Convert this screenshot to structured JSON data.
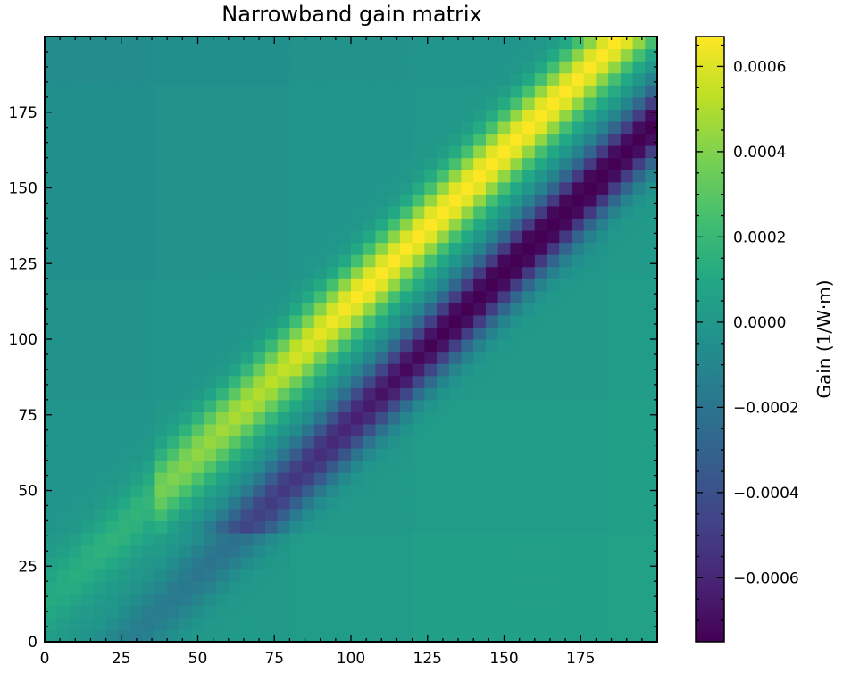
{
  "chart_data": {
    "type": "heatmap",
    "title": "Narrowband gain matrix",
    "xlabel": "",
    "ylabel": "",
    "xlim": [
      0,
      200
    ],
    "ylim": [
      0,
      200
    ],
    "x_ticks": [
      0,
      25,
      50,
      75,
      100,
      125,
      150,
      175
    ],
    "y_ticks": [
      0,
      25,
      50,
      75,
      100,
      125,
      150,
      175
    ],
    "grid": false,
    "colormap": "viridis",
    "block_edges": [
      0,
      38,
      80,
      121,
      183,
      200
    ],
    "zlim": [
      -0.00075,
      0.00067
    ],
    "colorbar": {
      "label": "Gain (1/W·m)",
      "ticks": [
        {
          "value": 0.0006,
          "label": "0.0006"
        },
        {
          "value": 0.0004,
          "label": "0.0004"
        },
        {
          "value": 0.0002,
          "label": "0.0002"
        },
        {
          "value": 0.0,
          "label": "0.0000"
        },
        {
          "value": -0.0002,
          "label": "−0.0002"
        },
        {
          "value": -0.0004,
          "label": "−0.0004"
        },
        {
          "value": -0.0006,
          "label": "−0.0006"
        }
      ]
    },
    "features": {
      "positive_ridge_x_minus_y": -12,
      "positive_peak": 0.00068,
      "negative_ridge_x_minus_y": 28,
      "negative_peak": -0.0008,
      "ridge_width": 12,
      "background": 0.0
    }
  }
}
